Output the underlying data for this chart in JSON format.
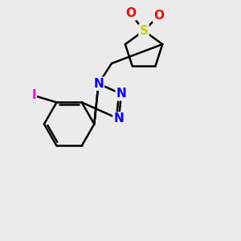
{
  "bg_color": "#ebebeb",
  "bond_color": "#000000",
  "bond_width": 1.8,
  "atom_colors": {
    "N": "#0000ff",
    "O": "#ff0000",
    "S": "#cccc00",
    "I": "#ee00ee",
    "C": "#000000"
  },
  "font_size_atom": 11
}
